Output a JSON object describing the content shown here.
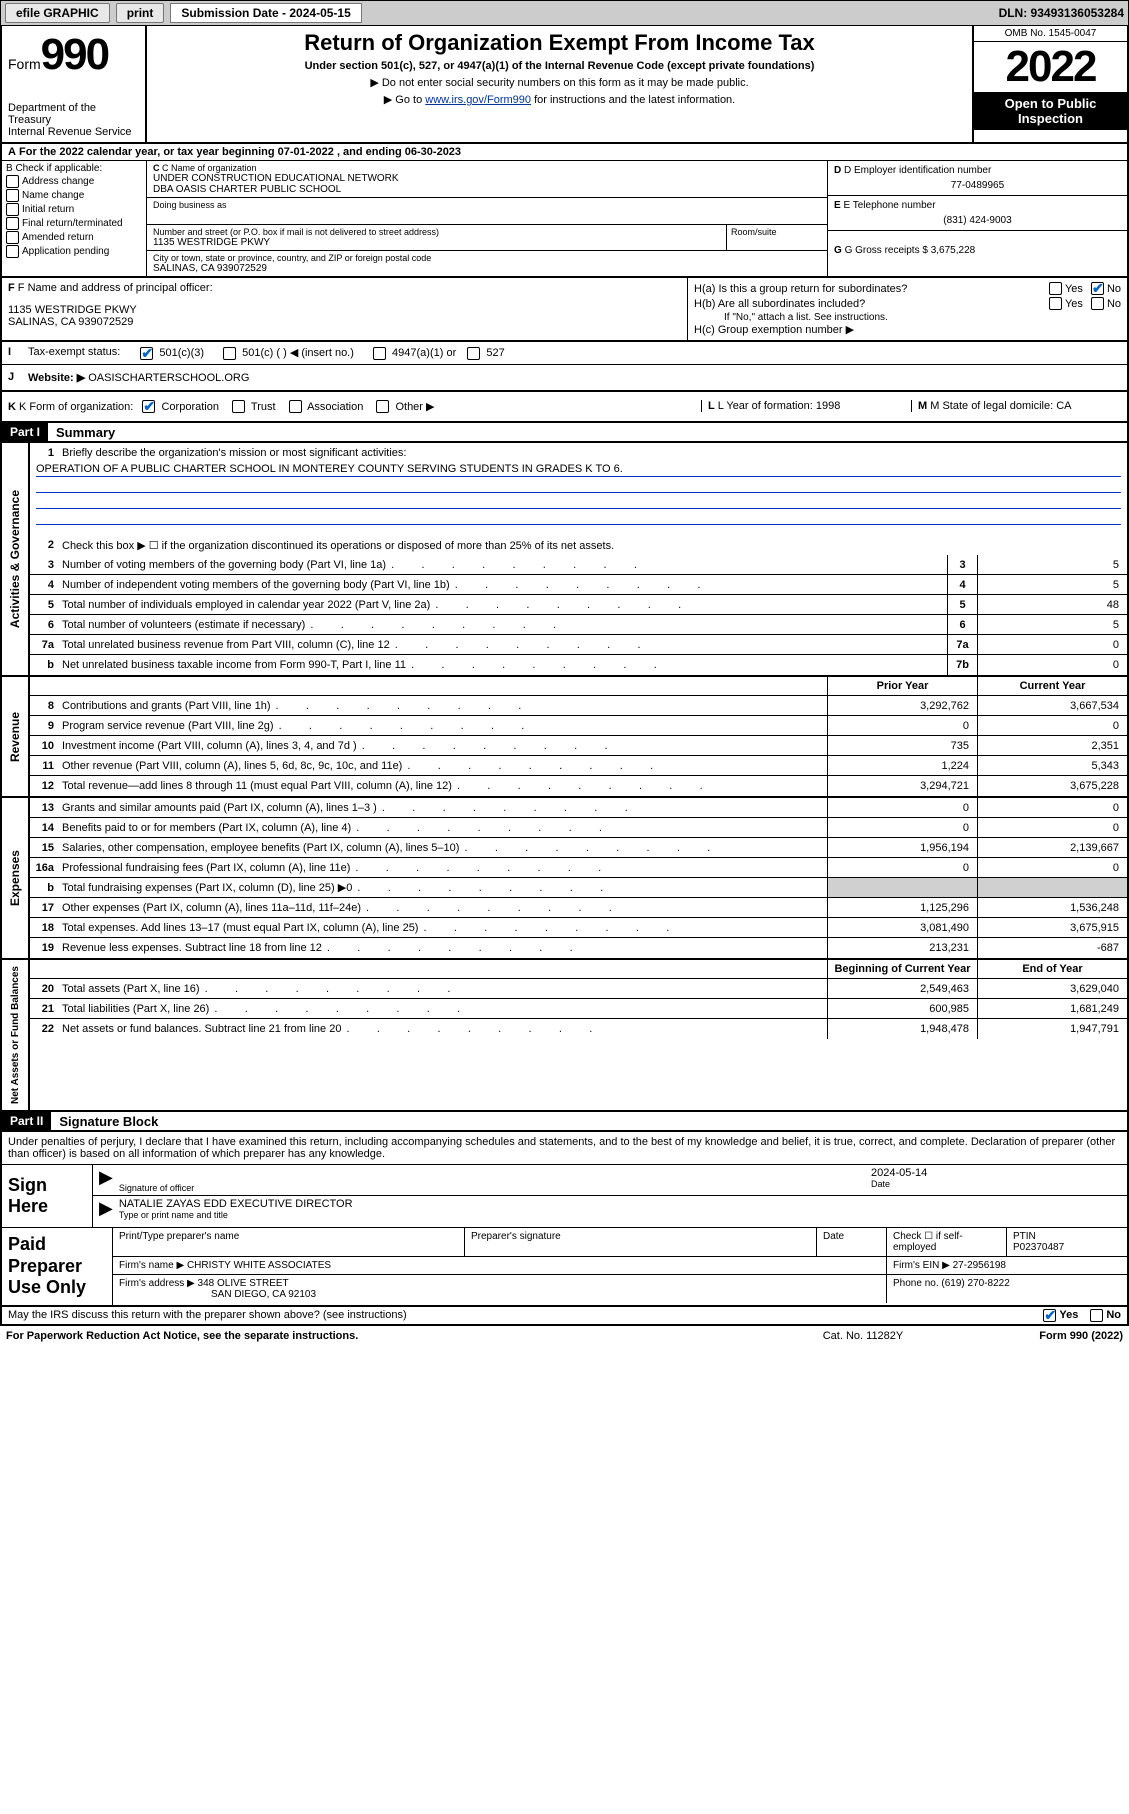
{
  "topbar": {
    "efile": "efile GRAPHIC",
    "print": "print",
    "sub_date_lbl": "Submission Date - 2024-05-15",
    "dln": "DLN: 93493136053284"
  },
  "header": {
    "form_word": "Form",
    "form_num": "990",
    "dept": "Department of the Treasury\nInternal Revenue Service",
    "title": "Return of Organization Exempt From Income Tax",
    "sub1": "Under section 501(c), 527, or 4947(a)(1) of the Internal Revenue Code (except private foundations)",
    "sub2": "▶ Do not enter social security numbers on this form as it may be made public.",
    "sub3_pre": "▶ Go to ",
    "sub3_link": "www.irs.gov/Form990",
    "sub3_post": " for instructions and the latest information.",
    "omb": "OMB No. 1545-0047",
    "year": "2022",
    "open_public": "Open to Public Inspection"
  },
  "line_a": "For the 2022 calendar year, or tax year beginning 07-01-2022   , and ending 06-30-2023",
  "section_b": {
    "hdr": "B Check if applicable:",
    "opts": [
      "Address change",
      "Name change",
      "Initial return",
      "Final return/terminated",
      "Amended return",
      "Application pending"
    ],
    "c_lbl": "C Name of organization",
    "c_name1": "UNDER CONSTRUCTION EDUCATIONAL NETWORK",
    "c_name2": "DBA OASIS CHARTER PUBLIC SCHOOL",
    "dba_lbl": "Doing business as",
    "addr_lbl": "Number and street (or P.O. box if mail is not delivered to street address)",
    "room_lbl": "Room/suite",
    "addr": "1135 WESTRIDGE PKWY",
    "city_lbl": "City or town, state or province, country, and ZIP or foreign postal code",
    "city": "SALINAS, CA  939072529",
    "d_lbl": "D Employer identification number",
    "d_val": "77-0489965",
    "e_lbl": "E Telephone number",
    "e_val": "(831) 424-9003",
    "g_lbl": "G Gross receipts $",
    "g_val": "3,675,228"
  },
  "section_f": {
    "f_lbl": "F Name and address of principal officer:",
    "f_addr1": "1135 WESTRIDGE PKWY",
    "f_addr2": "SALINAS, CA  939072529",
    "i_lbl": "Tax-exempt status:",
    "i_501c3": "501(c)(3)",
    "i_501c": "501(c) (  ) ◀ (insert no.)",
    "i_4947": "4947(a)(1) or",
    "i_527": "527",
    "j_lbl": "Website: ▶",
    "j_val": "OASISCHARTERSCHOOL.ORG",
    "ha_lbl": "H(a)  Is this a group return for subordinates?",
    "hb_lbl": "H(b)  Are all subordinates included?",
    "hb_note": "If \"No,\" attach a list. See instructions.",
    "hc_lbl": "H(c)  Group exemption number ▶",
    "yes": "Yes",
    "no": "No"
  },
  "section_k": {
    "k_lbl": "K Form of organization:",
    "k_corp": "Corporation",
    "k_trust": "Trust",
    "k_assoc": "Association",
    "k_other": "Other ▶",
    "l_lbl": "L Year of formation:",
    "l_val": "1998",
    "m_lbl": "M State of legal domicile:",
    "m_val": "CA"
  },
  "part1": {
    "hdr": "Part I",
    "title": "Summary"
  },
  "governance": {
    "label": "Activities & Governance",
    "l1": "Briefly describe the organization's mission or most significant activities:",
    "l1_val": "OPERATION OF A PUBLIC CHARTER SCHOOL IN MONTEREY COUNTY SERVING STUDENTS IN GRADES K TO 6.",
    "l2": "Check this box ▶ ☐  if the organization discontinued its operations or disposed of more than 25% of its net assets.",
    "rows": [
      {
        "n": "3",
        "d": "Number of voting members of the governing body (Part VI, line 1a)",
        "box": "3",
        "v": "5"
      },
      {
        "n": "4",
        "d": "Number of independent voting members of the governing body (Part VI, line 1b)",
        "box": "4",
        "v": "5"
      },
      {
        "n": "5",
        "d": "Total number of individuals employed in calendar year 2022 (Part V, line 2a)",
        "box": "5",
        "v": "48"
      },
      {
        "n": "6",
        "d": "Total number of volunteers (estimate if necessary)",
        "box": "6",
        "v": "5"
      },
      {
        "n": "7a",
        "d": "Total unrelated business revenue from Part VIII, column (C), line 12",
        "box": "7a",
        "v": "0"
      },
      {
        "n": "b",
        "d": "Net unrelated business taxable income from Form 990-T, Part I, line 11",
        "box": "7b",
        "v": "0"
      }
    ]
  },
  "col_hdrs": {
    "prior": "Prior Year",
    "current": "Current Year",
    "beg": "Beginning of Current Year",
    "end": "End of Year"
  },
  "revenue": {
    "label": "Revenue",
    "rows": [
      {
        "n": "8",
        "d": "Contributions and grants (Part VIII, line 1h)",
        "p": "3,292,762",
        "c": "3,667,534"
      },
      {
        "n": "9",
        "d": "Program service revenue (Part VIII, line 2g)",
        "p": "0",
        "c": "0"
      },
      {
        "n": "10",
        "d": "Investment income (Part VIII, column (A), lines 3, 4, and 7d )",
        "p": "735",
        "c": "2,351"
      },
      {
        "n": "11",
        "d": "Other revenue (Part VIII, column (A), lines 5, 6d, 8c, 9c, 10c, and 11e)",
        "p": "1,224",
        "c": "5,343"
      },
      {
        "n": "12",
        "d": "Total revenue—add lines 8 through 11 (must equal Part VIII, column (A), line 12)",
        "p": "3,294,721",
        "c": "3,675,228"
      }
    ]
  },
  "expenses": {
    "label": "Expenses",
    "rows": [
      {
        "n": "13",
        "d": "Grants and similar amounts paid (Part IX, column (A), lines 1–3 )",
        "p": "0",
        "c": "0"
      },
      {
        "n": "14",
        "d": "Benefits paid to or for members (Part IX, column (A), line 4)",
        "p": "0",
        "c": "0"
      },
      {
        "n": "15",
        "d": "Salaries, other compensation, employee benefits (Part IX, column (A), lines 5–10)",
        "p": "1,956,194",
        "c": "2,139,667"
      },
      {
        "n": "16a",
        "d": "Professional fundraising fees (Part IX, column (A), line 11e)",
        "p": "0",
        "c": "0"
      },
      {
        "n": "b",
        "d": "Total fundraising expenses (Part IX, column (D), line 25) ▶0",
        "p": "",
        "c": "",
        "grey": true
      },
      {
        "n": "17",
        "d": "Other expenses (Part IX, column (A), lines 11a–11d, 11f–24e)",
        "p": "1,125,296",
        "c": "1,536,248"
      },
      {
        "n": "18",
        "d": "Total expenses. Add lines 13–17 (must equal Part IX, column (A), line 25)",
        "p": "3,081,490",
        "c": "3,675,915"
      },
      {
        "n": "19",
        "d": "Revenue less expenses. Subtract line 18 from line 12",
        "p": "213,231",
        "c": "-687"
      }
    ]
  },
  "netassets": {
    "label": "Net Assets or Fund Balances",
    "rows": [
      {
        "n": "20",
        "d": "Total assets (Part X, line 16)",
        "p": "2,549,463",
        "c": "3,629,040"
      },
      {
        "n": "21",
        "d": "Total liabilities (Part X, line 26)",
        "p": "600,985",
        "c": "1,681,249"
      },
      {
        "n": "22",
        "d": "Net assets or fund balances. Subtract line 21 from line 20",
        "p": "1,948,478",
        "c": "1,947,791"
      }
    ]
  },
  "part2": {
    "hdr": "Part II",
    "title": "Signature Block",
    "declare": "Under penalties of perjury, I declare that I have examined this return, including accompanying schedules and statements, and to the best of my knowledge and belief, it is true, correct, and complete. Declaration of preparer (other than officer) is based on all information of which preparer has any knowledge.",
    "sign_here": "Sign Here",
    "sig_officer": "Signature of officer",
    "sig_date": "Date",
    "sig_date_val": "2024-05-14",
    "officer_name": "NATALIE ZAYAS EDD  EXECUTIVE DIRECTOR",
    "officer_caption": "Type or print name and title",
    "paid_prep": "Paid Preparer Use Only",
    "prep_name_lbl": "Print/Type preparer's name",
    "prep_sig_lbl": "Preparer's signature",
    "date_lbl": "Date",
    "check_self": "Check ☐ if self-employed",
    "ptin_lbl": "PTIN",
    "ptin_val": "P02370487",
    "firm_name_lbl": "Firm's name    ▶",
    "firm_name": "CHRISTY WHITE ASSOCIATES",
    "firm_ein_lbl": "Firm's EIN ▶",
    "firm_ein": "27-2956198",
    "firm_addr_lbl": "Firm's address ▶",
    "firm_addr1": "348 OLIVE STREET",
    "firm_addr2": "SAN DIEGO, CA  92103",
    "phone_lbl": "Phone no.",
    "phone_val": "(619) 270-8222",
    "irs_discuss": "May the IRS discuss this return with the preparer shown above? (see instructions)",
    "paperwork": "For Paperwork Reduction Act Notice, see the separate instructions.",
    "cat": "Cat. No. 11282Y",
    "form_foot": "Form 990 (2022)"
  }
}
